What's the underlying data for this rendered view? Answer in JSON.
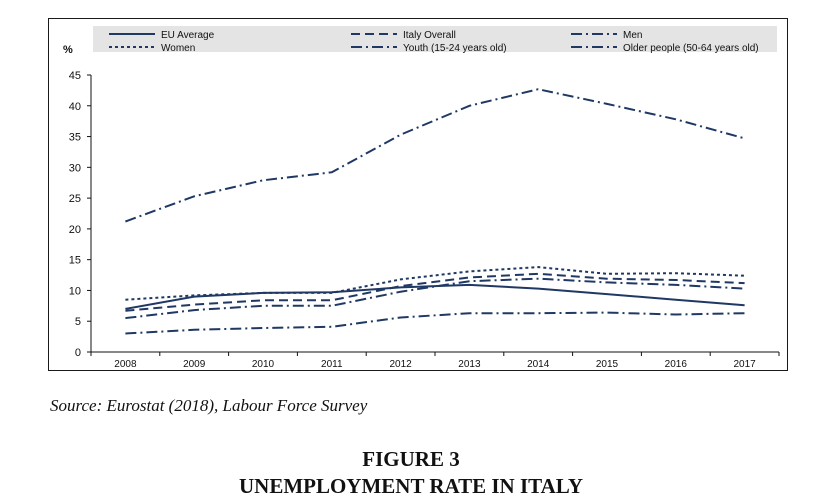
{
  "chart_data": {
    "type": "line",
    "ylabel": "%",
    "ylim": [
      0,
      45
    ],
    "yticks": [
      0,
      5,
      10,
      15,
      20,
      25,
      30,
      35,
      40,
      45
    ],
    "categories": [
      "2008",
      "2009",
      "2010",
      "2011",
      "2012",
      "2013",
      "2014",
      "2015",
      "2016",
      "2017"
    ],
    "grid": false,
    "legend_position": "top",
    "line_color": "#1f3864",
    "series": [
      {
        "name": "EU Average",
        "dash": "solid",
        "values": [
          7.0,
          9.0,
          9.6,
          9.7,
          10.5,
          10.9,
          10.3,
          9.4,
          8.5,
          7.6
        ]
      },
      {
        "name": "Italy Overall",
        "dash": "dashed",
        "values": [
          6.7,
          7.7,
          8.4,
          8.4,
          10.7,
          12.1,
          12.7,
          11.9,
          11.7,
          11.2
        ]
      },
      {
        "name": "Men",
        "dash": "dashdot",
        "values": [
          5.5,
          6.8,
          7.5,
          7.5,
          9.8,
          11.5,
          11.9,
          11.3,
          10.9,
          10.3
        ]
      },
      {
        "name": "Women",
        "dash": "dotted",
        "values": [
          8.5,
          9.2,
          9.6,
          9.6,
          11.8,
          13.1,
          13.8,
          12.7,
          12.8,
          12.4
        ]
      },
      {
        "name": "Youth (15-24 years old)",
        "dash": "dashdot",
        "values": [
          21.2,
          25.3,
          27.9,
          29.2,
          35.3,
          40.0,
          42.7,
          40.3,
          37.8,
          34.7
        ]
      },
      {
        "name": "Older people (50-64 years old)",
        "dash": "dashdot",
        "values": [
          3.0,
          3.6,
          3.9,
          4.1,
          5.6,
          6.3,
          6.3,
          6.4,
          6.1,
          6.3
        ]
      }
    ]
  },
  "source": "Source: Eurostat (2018), Labour Force Survey",
  "figure_number": "FIGURE 3",
  "figure_title": "UNEMPLOYMENT RATE IN ITALY"
}
